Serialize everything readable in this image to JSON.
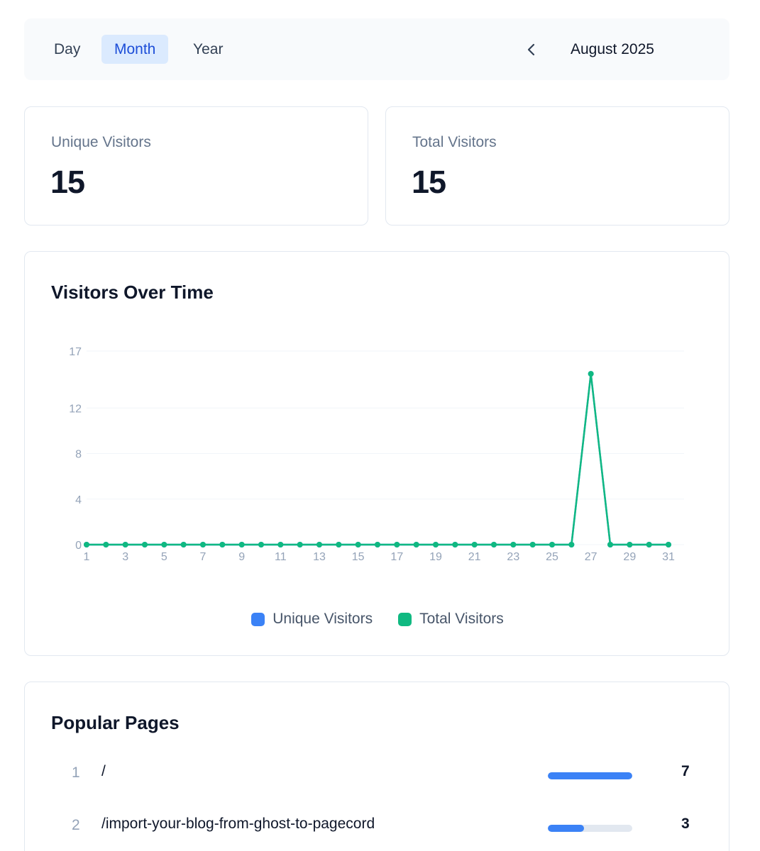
{
  "toolbar": {
    "tabs": [
      "Day",
      "Month",
      "Year"
    ],
    "active_tab": "Month",
    "period": "August 2025",
    "prev_icon": "chevron-left-icon"
  },
  "stats": [
    {
      "label": "Unique Visitors",
      "value": "15"
    },
    {
      "label": "Total Visitors",
      "value": "15"
    }
  ],
  "chart_section": {
    "title": "Visitors Over Time"
  },
  "chart_data": {
    "type": "line",
    "title": "Visitors Over Time",
    "x": [
      1,
      2,
      3,
      4,
      5,
      6,
      7,
      8,
      9,
      10,
      11,
      12,
      13,
      14,
      15,
      16,
      17,
      18,
      19,
      20,
      21,
      22,
      23,
      24,
      25,
      26,
      27,
      28,
      29,
      30,
      31
    ],
    "x_tick_labels": [
      "1",
      "3",
      "5",
      "7",
      "9",
      "11",
      "13",
      "15",
      "17",
      "19",
      "21",
      "23",
      "25",
      "27",
      "29",
      "31"
    ],
    "y_tick_labels": [
      "0",
      "4",
      "8",
      "12",
      "17"
    ],
    "y_ticks": [
      0,
      4,
      8,
      12,
      17
    ],
    "ylim": [
      0,
      17
    ],
    "xlim": [
      1,
      31
    ],
    "grid": true,
    "legend_position": "bottom",
    "series": [
      {
        "name": "Unique Visitors",
        "color": "#3b82f6",
        "values": [
          0,
          0,
          0,
          0,
          0,
          0,
          0,
          0,
          0,
          0,
          0,
          0,
          0,
          0,
          0,
          0,
          0,
          0,
          0,
          0,
          0,
          0,
          0,
          0,
          0,
          0,
          15,
          0,
          0,
          0,
          0
        ]
      },
      {
        "name": "Total Visitors",
        "color": "#10b981",
        "values": [
          0,
          0,
          0,
          0,
          0,
          0,
          0,
          0,
          0,
          0,
          0,
          0,
          0,
          0,
          0,
          0,
          0,
          0,
          0,
          0,
          0,
          0,
          0,
          0,
          0,
          0,
          15,
          0,
          0,
          0,
          0
        ]
      }
    ]
  },
  "popular_pages": {
    "title": "Popular Pages",
    "rows": [
      {
        "rank": "1",
        "path": "/",
        "count": "7",
        "share": 1.0
      },
      {
        "rank": "2",
        "path": "/import-your-blog-from-ghost-to-pagecord",
        "count": "3",
        "share": 0.43
      }
    ]
  }
}
